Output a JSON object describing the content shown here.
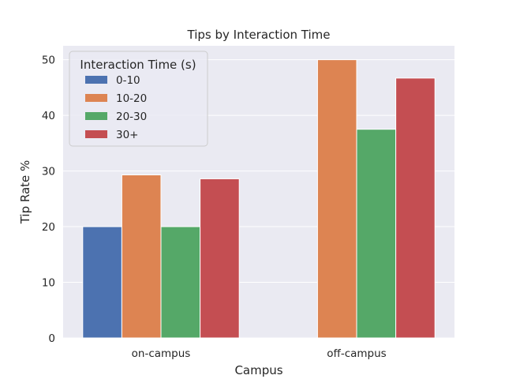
{
  "chart_data": {
    "type": "bar",
    "title": "Tips by Interaction Time",
    "xlabel": "Campus",
    "ylabel": "Tip Rate %",
    "categories": [
      "on-campus",
      "off-campus"
    ],
    "ylim": [
      0,
      52.5
    ],
    "yticks": [
      0,
      10,
      20,
      30,
      40,
      50
    ],
    "grid": true,
    "legend": {
      "title": "Interaction Time (s)",
      "placement": "top-left"
    },
    "series": [
      {
        "name": "0-10",
        "color": "#4c72b0",
        "values": [
          20.0,
          null
        ]
      },
      {
        "name": "10-20",
        "color": "#dd8452",
        "values": [
          29.3,
          50.0
        ]
      },
      {
        "name": "20-30",
        "color": "#55a868",
        "values": [
          20.0,
          37.5
        ]
      },
      {
        "name": "30+",
        "color": "#c44e52",
        "values": [
          28.6,
          46.7
        ]
      }
    ]
  }
}
